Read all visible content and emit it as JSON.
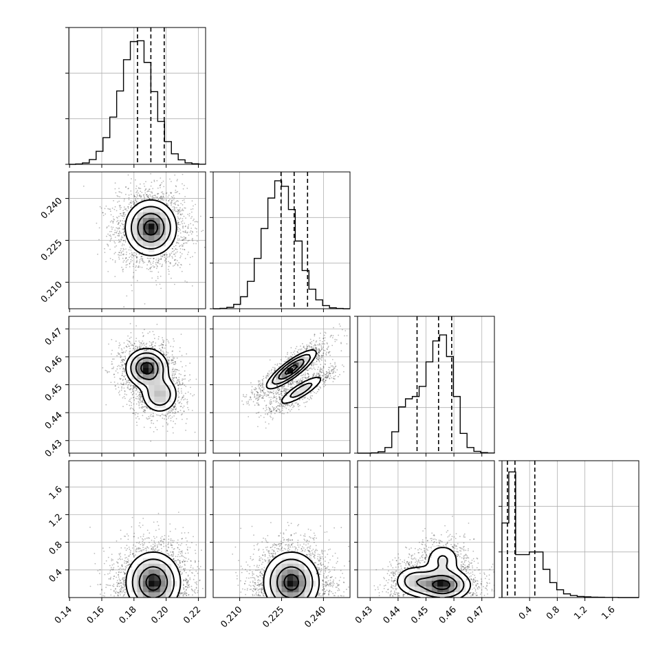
{
  "chart_data": {
    "type": "corner",
    "grid": true,
    "parameters": [
      {
        "range": [
          0.1395,
          0.2245
        ],
        "ticks": [
          0.14,
          0.16,
          0.18,
          0.2,
          0.22
        ],
        "tick_labels": [
          "0.14",
          "0.16",
          "0.18",
          "0.20",
          "0.22"
        ],
        "center": 0.1905,
        "spread": 0.0085,
        "hist_bins": [
          0.0,
          0.003,
          0.01,
          0.035,
          0.095,
          0.195,
          0.345,
          0.536,
          0.765,
          0.897,
          0.903,
          0.745,
          0.531,
          0.314,
          0.166,
          0.077,
          0.033,
          0.011,
          0.004,
          0.001
        ],
        "quantiles": [
          0.1822,
          0.1905,
          0.1988
        ]
      },
      {
        "range": [
          0.2005,
          0.2495
        ],
        "ticks": [
          0.21,
          0.225,
          0.24
        ],
        "tick_labels": [
          "0.210",
          "0.225",
          "0.240"
        ],
        "center": 0.2295,
        "spread": 0.0048,
        "hist_bins": [
          0.0,
          0.003,
          0.01,
          0.032,
          0.088,
          0.2,
          0.368,
          0.586,
          0.809,
          0.935,
          0.895,
          0.725,
          0.495,
          0.279,
          0.143,
          0.065,
          0.023,
          0.007,
          0.002,
          0.0
        ],
        "quantiles": [
          0.2248,
          0.2295,
          0.2343
        ]
      },
      {
        "range": [
          0.4255,
          0.4745
        ],
        "ticks": [
          0.43,
          0.44,
          0.45,
          0.46,
          0.47
        ],
        "tick_labels": [
          "0.43",
          "0.44",
          "0.45",
          "0.46",
          "0.47"
        ],
        "center": 0.4545,
        "spread": 0.0062,
        "hist_bins": [
          0.0,
          0.0,
          0.002,
          0.01,
          0.041,
          0.156,
          0.338,
          0.397,
          0.414,
          0.488,
          0.667,
          0.82,
          0.864,
          0.706,
          0.414,
          0.144,
          0.041,
          0.013,
          0.004,
          0.001
        ],
        "quantiles": [
          0.4468,
          0.4545,
          0.4592
        ]
      },
      {
        "range": [
          0.0,
          1.98
        ],
        "ticks": [
          0.4,
          0.8,
          1.2,
          1.6
        ],
        "tick_labels": [
          "0.4",
          "0.8",
          "1.2",
          "1.6"
        ],
        "center": 0.2,
        "spread": 0.1,
        "hist_bins": [
          0.545,
          0.918,
          0.314,
          0.314,
          0.333,
          0.333,
          0.206,
          0.109,
          0.057,
          0.027,
          0.015,
          0.008,
          0.005,
          0.003,
          0.002,
          0.001,
          0.001,
          0.0,
          0.0,
          0.0
        ],
        "quantiles": [
          0.0792,
          0.1881,
          0.4752
        ]
      }
    ],
    "density_modes": [
      {
        "pair": [
          1,
          0
        ],
        "modes": [
          {
            "x": 0.1905,
            "y": 0.2295,
            "sx": 0.008,
            "sy": 0.005,
            "w": 1.0
          }
        ]
      },
      {
        "pair": [
          2,
          0
        ],
        "modes": [
          {
            "x": 0.188,
            "y": 0.456,
            "sx": 0.0065,
            "sy": 0.0035,
            "w": 0.8
          },
          {
            "x": 0.196,
            "y": 0.4465,
            "sx": 0.006,
            "sy": 0.0035,
            "w": 0.45
          }
        ]
      },
      {
        "pair": [
          2,
          1
        ],
        "modes": [
          {
            "x": 0.2285,
            "y": 0.4555,
            "sx": 0.0045,
            "sy": 0.0035,
            "w": 0.75,
            "rho": 0.85
          },
          {
            "x": 0.232,
            "y": 0.448,
            "sx": 0.0045,
            "sy": 0.003,
            "w": 0.35,
            "rho": 0.85
          }
        ]
      },
      {
        "pair": [
          3,
          0
        ],
        "modes": [
          {
            "x": 0.192,
            "y": 0.22,
            "sx": 0.0085,
            "sy": 0.22,
            "w": 1.0
          }
        ]
      },
      {
        "pair": [
          3,
          1
        ],
        "modes": [
          {
            "x": 0.2285,
            "y": 0.22,
            "sx": 0.005,
            "sy": 0.22,
            "w": 1.0
          }
        ]
      },
      {
        "pair": [
          3,
          2
        ],
        "modes": [
          {
            "x": 0.456,
            "y": 0.18,
            "sx": 0.005,
            "sy": 0.12,
            "w": 1.0
          },
          {
            "x": 0.446,
            "y": 0.24,
            "sx": 0.004,
            "sy": 0.12,
            "w": 0.45
          },
          {
            "x": 0.456,
            "y": 0.55,
            "sx": 0.0035,
            "sy": 0.13,
            "w": 0.35
          }
        ]
      }
    ]
  }
}
